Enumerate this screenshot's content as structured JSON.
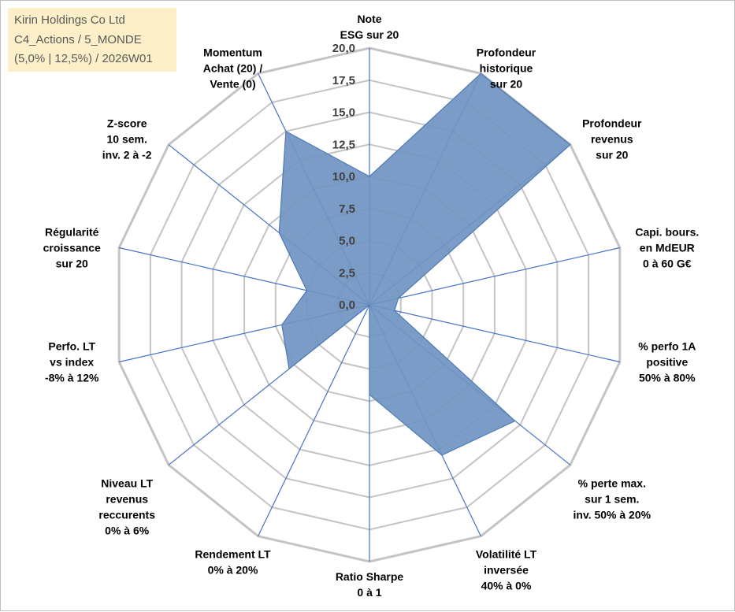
{
  "info": {
    "line1": "Kirin Holdings Co Ltd",
    "line2": "C4_Actions / 5_MONDE",
    "line3": "(5,0% | 12,5%) / 2026W01"
  },
  "colors": {
    "fill": "#7094c1",
    "stroke": "#4f7ab4",
    "grid": "#c4c4c4",
    "axis": "#4472c4",
    "info_bg": "#fdf0c8"
  },
  "chart_data": {
    "type": "radar",
    "title": "",
    "rmin": 0,
    "rmax": 20,
    "ticks": [
      "0,0",
      "2,5",
      "5,0",
      "7,5",
      "10,0",
      "12,5",
      "15,0",
      "17,5",
      "20,0"
    ],
    "axes": [
      {
        "label": [
          "Note",
          "ESG sur 20"
        ],
        "value": 10.0
      },
      {
        "label": [
          "Profondeur",
          "historique",
          "sur 20"
        ],
        "value": 20.0
      },
      {
        "label": [
          "Profondeur",
          "revenus",
          "sur 20"
        ],
        "value": 20.0
      },
      {
        "label": [
          "Capi. bours.",
          "en MdEUR",
          "0 à 60 G€"
        ],
        "value": 2.3
      },
      {
        "label": [
          "% perfo 1A",
          "positive",
          "50% à 80%"
        ],
        "value": 2.0
      },
      {
        "label": [
          "% perte max.",
          "sur 1 sem.",
          "inv. 50% à 20%"
        ],
        "value": 14.5
      },
      {
        "label": [
          "Volatilité LT",
          "inversée",
          "40% à 0%"
        ],
        "value": 13.0
      },
      {
        "label": [
          "Ratio Sharpe",
          "0 à 1"
        ],
        "value": 7.0
      },
      {
        "label": [
          "Rendement LT",
          "0% à 20%"
        ],
        "value": 0.0
      },
      {
        "label": [
          "Niveau LT",
          "revenus",
          "reccurents",
          "0% à 6%"
        ],
        "value": 8.0
      },
      {
        "label": [
          "Perfo. LT",
          "vs index",
          "-8% à 12%"
        ],
        "value": 7.0
      },
      {
        "label": [
          "Régularité",
          "croissance",
          "sur 20"
        ],
        "value": 5.0
      },
      {
        "label": [
          "Z-score",
          "10 sem.",
          "inv. 2 à -2"
        ],
        "value": 9.0
      },
      {
        "label": [
          "Momentum",
          "Achat (20) /",
          "Vente (0)"
        ],
        "value": 15.0
      }
    ]
  }
}
